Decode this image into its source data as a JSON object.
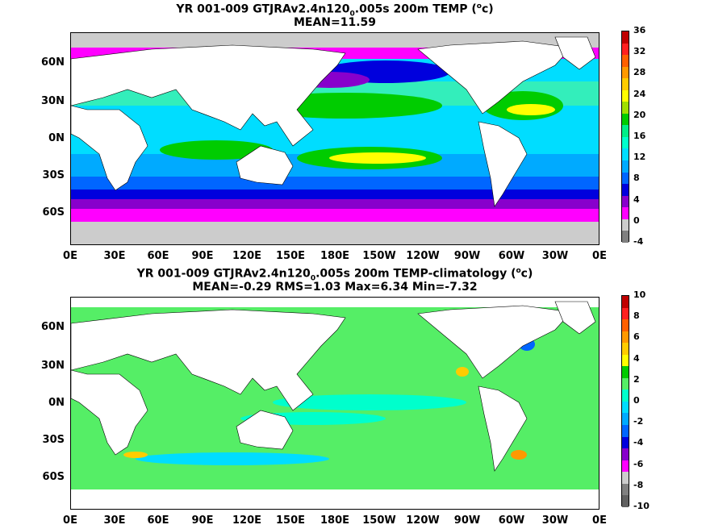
{
  "top": {
    "title_pre": "YR 001-009 GTJRAv2.4n120",
    "title_sub": "0",
    "title_post": ".005s 200m TEMP (",
    "title_sup": "o",
    "title_end": "c)",
    "subtitle": "MEAN=11.59",
    "colorbar_labels": [
      "36",
      "32",
      "28",
      "24",
      "20",
      "16",
      "12",
      "8",
      "4",
      "0",
      "-4"
    ],
    "colorbar_colors": [
      "#c00000",
      "#ff2020",
      "#ff6000",
      "#ff9900",
      "#ffcc00",
      "#ffff00",
      "#a0e000",
      "#00cc00",
      "#00ee88",
      "#00ffcc",
      "#00ddff",
      "#00aaff",
      "#0066ff",
      "#0000dd",
      "#8800cc",
      "#ff00ff",
      "#cccccc",
      "#808080"
    ]
  },
  "bottom": {
    "title_pre": "YR 001-009 GTJRAv2.4n120",
    "title_sub": "0",
    "title_post": ".005s 200m TEMP-climatology (",
    "title_sup": "o",
    "title_end": "c)",
    "subtitle": "MEAN=-0.29   RMS=1.03   Max=6.34   Min=-7.32",
    "colorbar_labels": [
      "10",
      "8",
      "6",
      "4",
      "2",
      "0",
      "-2",
      "-4",
      "-6",
      "-8",
      "-10"
    ],
    "colorbar_colors": [
      "#c00000",
      "#ff2020",
      "#ff6000",
      "#ff9900",
      "#ffcc00",
      "#ffff00",
      "#00cc00",
      "#55ee66",
      "#00ffcc",
      "#00ddff",
      "#00aaff",
      "#0066ff",
      "#0000dd",
      "#8800cc",
      "#ff00ff",
      "#cccccc",
      "#808080",
      "#606060"
    ]
  },
  "lat_labels": [
    "60N",
    "30N",
    "0N",
    "30S",
    "60S"
  ],
  "lon_labels": [
    "0E",
    "30E",
    "60E",
    "90E",
    "120E",
    "150E",
    "180E",
    "150W",
    "120W",
    "90W",
    "60W",
    "30W",
    "0E"
  ]
}
